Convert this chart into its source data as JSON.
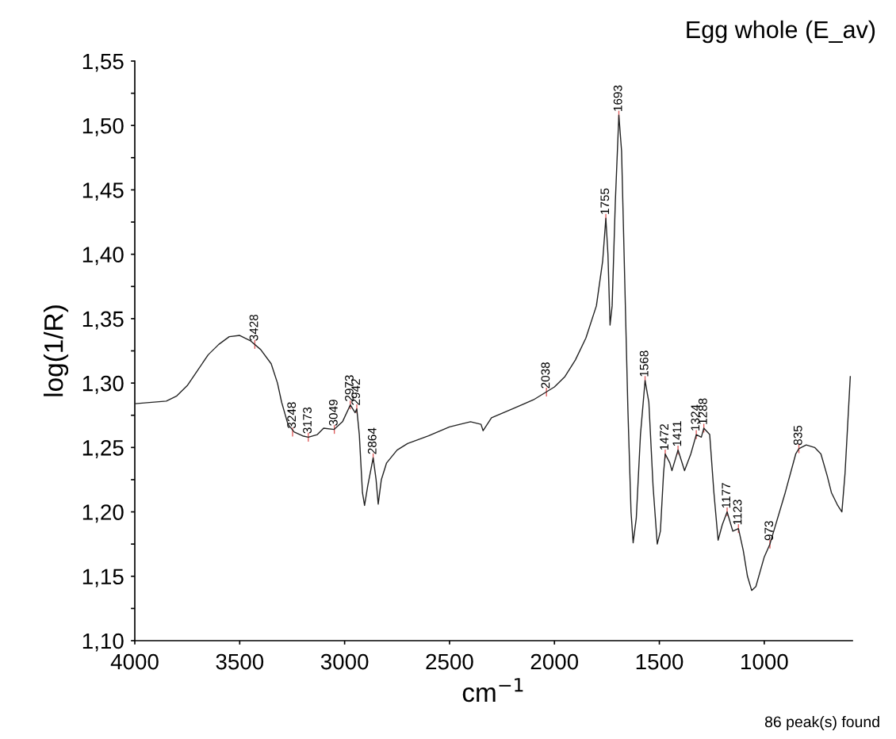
{
  "chart_data": {
    "type": "line",
    "title": "Egg whole (E_av)",
    "xlabel": "cm$^{−1}$",
    "ylabel": "log(1/R)",
    "x": [
      4000,
      3850,
      3800,
      3750,
      3700,
      3650,
      3600,
      3550,
      3500,
      3450,
      3400,
      3350,
      3320,
      3300,
      3270,
      3240,
      3200,
      3173,
      3130,
      3100,
      3050,
      3010,
      2973,
      2950,
      2942,
      2930,
      2915,
      2905,
      2890,
      2864,
      2850,
      2840,
      2825,
      2800,
      2750,
      2700,
      2600,
      2500,
      2400,
      2350,
      2340,
      2300,
      2200,
      2100,
      2000,
      1950,
      1900,
      1850,
      1800,
      1770,
      1755,
      1745,
      1735,
      1725,
      1710,
      1693,
      1680,
      1665,
      1650,
      1635,
      1625,
      1610,
      1590,
      1568,
      1550,
      1530,
      1510,
      1495,
      1480,
      1472,
      1450,
      1440,
      1411,
      1380,
      1350,
      1324,
      1300,
      1288,
      1260,
      1240,
      1220,
      1200,
      1177,
      1150,
      1123,
      1100,
      1080,
      1060,
      1040,
      1000,
      973,
      900,
      850,
      835,
      800,
      760,
      730,
      700,
      680,
      650,
      630,
      615,
      590
    ],
    "series": [
      {
        "color": "#222222",
        "values": [
          1.284,
          1.286,
          1.29,
          1.298,
          1.31,
          1.322,
          1.33,
          1.336,
          1.337,
          1.333,
          1.326,
          1.315,
          1.3,
          1.285,
          1.268,
          1.262,
          1.259,
          1.258,
          1.26,
          1.265,
          1.264,
          1.27,
          1.283,
          1.277,
          1.28,
          1.26,
          1.215,
          1.205,
          1.22,
          1.242,
          1.225,
          1.206,
          1.225,
          1.238,
          1.248,
          1.253,
          1.259,
          1.266,
          1.27,
          1.268,
          1.263,
          1.273,
          1.28,
          1.287,
          1.297,
          1.305,
          1.318,
          1.335,
          1.36,
          1.395,
          1.428,
          1.4,
          1.345,
          1.36,
          1.44,
          1.508,
          1.48,
          1.38,
          1.28,
          1.2,
          1.176,
          1.195,
          1.26,
          1.302,
          1.285,
          1.22,
          1.175,
          1.185,
          1.23,
          1.245,
          1.238,
          1.232,
          1.248,
          1.232,
          1.245,
          1.26,
          1.258,
          1.265,
          1.26,
          1.215,
          1.178,
          1.19,
          1.2,
          1.185,
          1.187,
          1.17,
          1.15,
          1.139,
          1.142,
          1.165,
          1.175,
          1.215,
          1.245,
          1.249,
          1.252,
          1.25,
          1.245,
          1.228,
          1.215,
          1.205,
          1.2,
          1.23,
          1.305
        ]
      }
    ],
    "xlim": [
      4000,
      580
    ],
    "xticks": [
      4000,
      3500,
      3000,
      2500,
      2000,
      1500,
      1000
    ],
    "ylim": [
      1.1,
      1.55
    ],
    "yticks": [
      {
        "value": 1.1,
        "label": "1,10"
      },
      {
        "value": 1.125,
        "label": null
      },
      {
        "value": 1.15,
        "label": "1,15"
      },
      {
        "value": 1.175,
        "label": null
      },
      {
        "value": 1.2,
        "label": "1,20"
      },
      {
        "value": 1.225,
        "label": null
      },
      {
        "value": 1.25,
        "label": "1,25"
      },
      {
        "value": 1.275,
        "label": null
      },
      {
        "value": 1.3,
        "label": "1,30"
      },
      {
        "value": 1.325,
        "label": null
      },
      {
        "value": 1.35,
        "label": "1,35"
      },
      {
        "value": 1.375,
        "label": null
      },
      {
        "value": 1.4,
        "label": "1,40"
      },
      {
        "value": 1.425,
        "label": null
      },
      {
        "value": 1.45,
        "label": "1,45"
      },
      {
        "value": 1.475,
        "label": null
      },
      {
        "value": 1.5,
        "label": "1,50"
      },
      {
        "value": 1.525,
        "label": null
      },
      {
        "value": 1.55,
        "label": "1,55"
      }
    ],
    "grid": false,
    "legend": false,
    "marker": "none",
    "line_style": "solid",
    "annotations": [
      {
        "text": "3428",
        "x": 3428,
        "y": 1.33
      },
      {
        "text": "3248",
        "x": 3248,
        "y": 1.262
      },
      {
        "text": "3173",
        "x": 3173,
        "y": 1.258
      },
      {
        "text": "3049",
        "x": 3049,
        "y": 1.264
      },
      {
        "text": "2973",
        "x": 2973,
        "y": 1.283
      },
      {
        "text": "2942",
        "x": 2942,
        "y": 1.28
      },
      {
        "text": "2864",
        "x": 2864,
        "y": 1.242
      },
      {
        "text": "2038",
        "x": 2038,
        "y": 1.293
      },
      {
        "text": "1755",
        "x": 1755,
        "y": 1.428
      },
      {
        "text": "1693",
        "x": 1693,
        "y": 1.508
      },
      {
        "text": "1568",
        "x": 1568,
        "y": 1.302
      },
      {
        "text": "1472",
        "x": 1472,
        "y": 1.245
      },
      {
        "text": "1411",
        "x": 1411,
        "y": 1.248
      },
      {
        "text": "1324",
        "x": 1324,
        "y": 1.26
      },
      {
        "text": "1288",
        "x": 1288,
        "y": 1.265
      },
      {
        "text": "1177",
        "x": 1177,
        "y": 1.2
      },
      {
        "text": "1123",
        "x": 1123,
        "y": 1.187
      },
      {
        "text": "973",
        "x": 973,
        "y": 1.175
      },
      {
        "text": "835",
        "x": 835,
        "y": 1.249
      },
      "86 peak(s) found"
    ]
  }
}
